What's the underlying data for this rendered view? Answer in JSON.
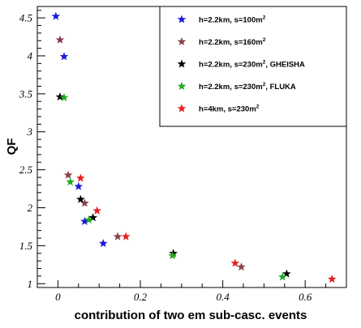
{
  "chart_data": {
    "type": "scatter",
    "xlabel": "contribution of two em sub-casc. events",
    "ylabel": "QF",
    "xlim": [
      -0.05,
      0.7
    ],
    "ylim": [
      0.95,
      4.65
    ],
    "x_ticks": [
      {
        "value": 0,
        "label": "0"
      },
      {
        "value": 0.2,
        "label": "0.2"
      },
      {
        "value": 0.4,
        "label": "0.4"
      },
      {
        "value": 0.6,
        "label": "0.6"
      }
    ],
    "y_ticks": [
      {
        "value": 1,
        "label": "1"
      },
      {
        "value": 1.5,
        "label": "1.5"
      },
      {
        "value": 2,
        "label": "2"
      },
      {
        "value": 2.5,
        "label": "2.5"
      },
      {
        "value": 3,
        "label": "3"
      },
      {
        "value": 3.5,
        "label": "3.5"
      },
      {
        "value": 4,
        "label": "4"
      },
      {
        "value": 4.5,
        "label": "4.5"
      }
    ],
    "grid": false,
    "legend_position": "top-right",
    "marker": "star",
    "series": [
      {
        "name_main": "h=2.2km, s=100m",
        "name_sup": "2",
        "name_suffix": "",
        "color": "#1a1adb",
        "points": [
          [
            -0.005,
            4.52
          ],
          [
            0.015,
            3.99
          ],
          [
            0.05,
            2.28
          ],
          [
            0.065,
            1.82
          ],
          [
            0.11,
            1.53
          ]
        ]
      },
      {
        "name_main": "h=2.2km, s=160m",
        "name_sup": "2",
        "name_suffix": "",
        "color": "#8b4049",
        "points": [
          [
            0.005,
            4.21
          ],
          [
            0.025,
            2.43
          ],
          [
            0.065,
            2.06
          ],
          [
            0.145,
            1.62
          ],
          [
            0.445,
            1.22
          ]
        ]
      },
      {
        "name_main": "h=2.2km, s=230m",
        "name_sup": "2",
        "name_suffix": ", GHEISHA",
        "color": "#000000",
        "points": [
          [
            0.005,
            3.46
          ],
          [
            0.055,
            2.11
          ],
          [
            0.085,
            1.87
          ],
          [
            0.28,
            1.4
          ],
          [
            0.555,
            1.13
          ]
        ]
      },
      {
        "name_main": "h=2.2km, s=230m",
        "name_sup": "2",
        "name_suffix": ", FLUKA",
        "color": "#22aa22",
        "points": [
          [
            0.015,
            3.45
          ],
          [
            0.03,
            2.34
          ],
          [
            0.075,
            1.84
          ],
          [
            0.278,
            1.37
          ],
          [
            0.545,
            1.09
          ]
        ]
      },
      {
        "name_main": "h=4km, s=230m",
        "name_sup": "2",
        "name_suffix": "",
        "color": "#e82020",
        "points": [
          [
            0.055,
            2.39
          ],
          [
            0.095,
            1.96
          ],
          [
            0.165,
            1.62
          ],
          [
            0.43,
            1.27
          ],
          [
            0.665,
            1.06
          ]
        ]
      }
    ]
  }
}
